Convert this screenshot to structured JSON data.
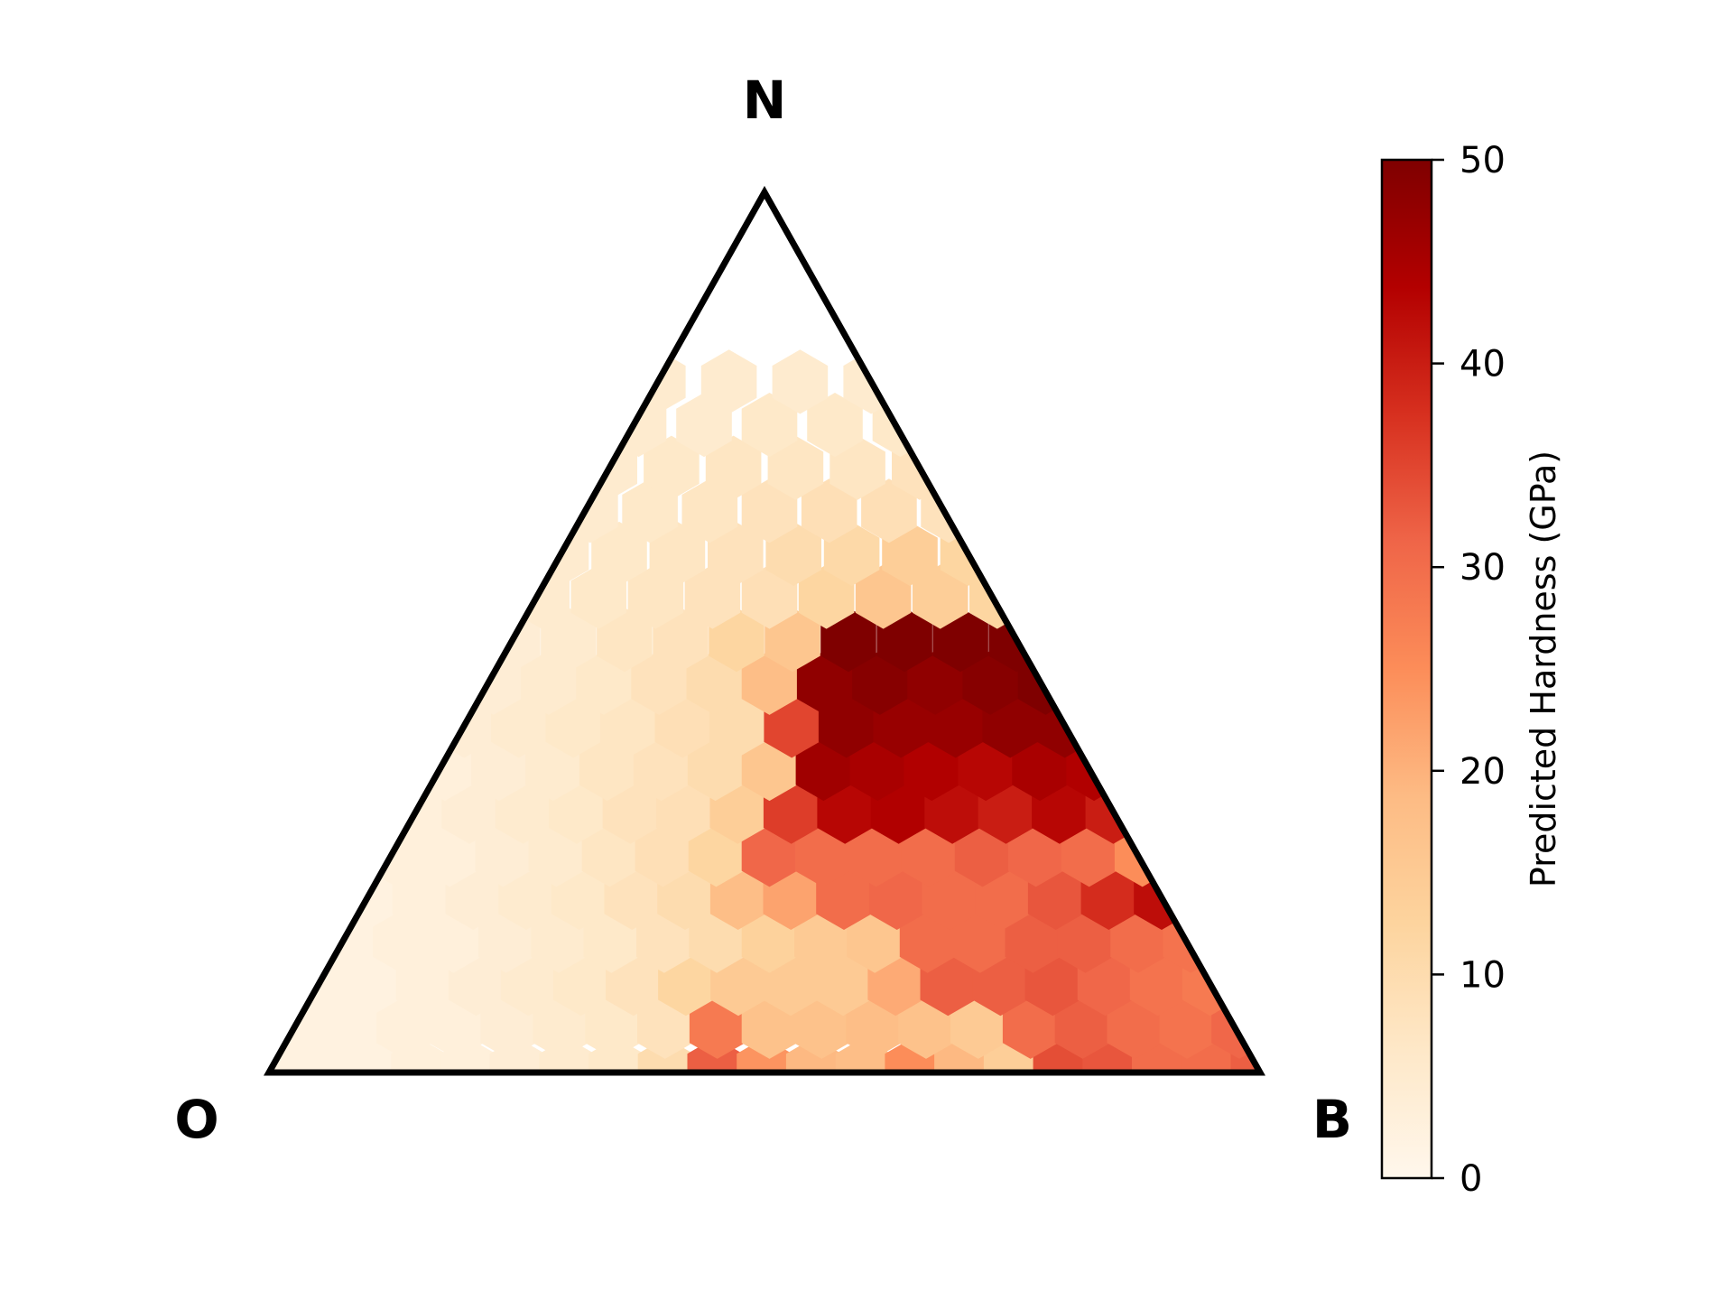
{
  "chart_data": {
    "type": "heatmap",
    "subtype": "ternary-hexbin",
    "vertices": {
      "top": "N",
      "left": "O",
      "right": "B"
    },
    "colorbar": {
      "label": "Predicted Hardness (GPa)",
      "range": [
        0,
        50
      ],
      "ticks": [
        0,
        10,
        20,
        30,
        40,
        50
      ],
      "tick_labels": [
        "0",
        "10",
        "20",
        "30",
        "40",
        "50"
      ],
      "colormap": "OrRd"
    },
    "colormap_stops": [
      "#fff7ec",
      "#fee8c8",
      "#fdd49e",
      "#fdbb84",
      "#fc8d59",
      "#ef6548",
      "#d7301f",
      "#b30000",
      "#7f0000"
    ],
    "grid": false,
    "cell_grid_note": "Each row lists hexbin hardness values (GPa) from the O–N edge toward the N–B edge; row 0 is at the O–B base, row 16 at the N apex.",
    "rows": [
      [
        2,
        2,
        2,
        3,
        3,
        4,
        5,
        6,
        10,
        32,
        24,
        19,
        18,
        25,
        19,
        14,
        34,
        33,
        30,
        30,
        32
      ],
      [
        2,
        2,
        3,
        3,
        4,
        5,
        6,
        8,
        28,
        17,
        17,
        18,
        17,
        15,
        30,
        32,
        30,
        29,
        31
      ],
      [
        2,
        2,
        3,
        4,
        5,
        6,
        8,
        12,
        15,
        15,
        15,
        21,
        32,
        32,
        33,
        31,
        29,
        28
      ],
      [
        2,
        3,
        3,
        4,
        5,
        6,
        8,
        10,
        13,
        15,
        16,
        30,
        30,
        32,
        32,
        30,
        29
      ],
      [
        2,
        3,
        4,
        5,
        6,
        8,
        10,
        18,
        22,
        30,
        31,
        30,
        30,
        33,
        38,
        42
      ],
      [
        3,
        3,
        4,
        5,
        7,
        9,
        12,
        31,
        30,
        30,
        30,
        32,
        31,
        30,
        25
      ],
      [
        3,
        4,
        5,
        6,
        8,
        9,
        14,
        36,
        43,
        44,
        42,
        40,
        43,
        40
      ],
      [
        3,
        4,
        5,
        7,
        8,
        10,
        16,
        46,
        45,
        44,
        43,
        45,
        44
      ],
      [
        4,
        5,
        6,
        7,
        9,
        10,
        35,
        48,
        47,
        47,
        48,
        48
      ],
      [
        4,
        5,
        6,
        8,
        10,
        18,
        48,
        49,
        48,
        49,
        50
      ],
      [
        4,
        5,
        7,
        8,
        12,
        16,
        50,
        50,
        50,
        50
      ],
      [
        5,
        6,
        7,
        8,
        9,
        12,
        16,
        14,
        12
      ],
      [
        5,
        6,
        7,
        8,
        10,
        11,
        14,
        12
      ],
      [
        5,
        6,
        7,
        8,
        9,
        9,
        8
      ],
      [
        5,
        6,
        7,
        7,
        7,
        8
      ],
      [
        5,
        5,
        6,
        6,
        6
      ],
      [
        5,
        5,
        5,
        5
      ]
    ]
  }
}
